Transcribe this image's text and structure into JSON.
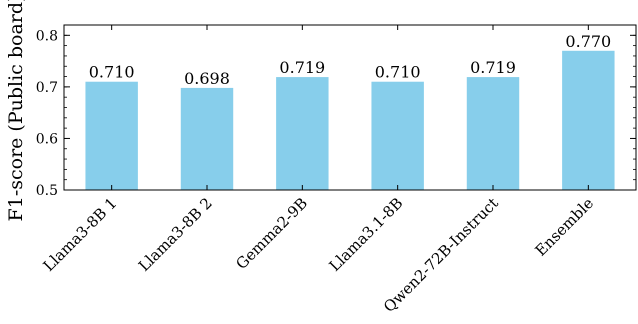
{
  "chart_data": {
    "type": "bar",
    "title": "",
    "xlabel": "",
    "ylabel": "F1-score (Public board)",
    "categories": [
      "Llama3-8B 1",
      "Llama3-8B 2",
      "Gemma2-9B",
      "Llama3.1-8B",
      "Qwen2-72B-Instruct",
      "Ensemble"
    ],
    "values": [
      0.71,
      0.698,
      0.719,
      0.71,
      0.719,
      0.77
    ],
    "data_labels": [
      "0.710",
      "0.698",
      "0.719",
      "0.710",
      "0.719",
      "0.770"
    ],
    "ylim": [
      0.5,
      0.82
    ],
    "yticks": [
      0.5,
      0.6,
      0.7,
      0.8
    ],
    "ytick_labels": [
      "0.5",
      "0.6",
      "0.7",
      "0.8"
    ],
    "grid": false,
    "legend": "none",
    "bar_color": "#87CEEB"
  }
}
